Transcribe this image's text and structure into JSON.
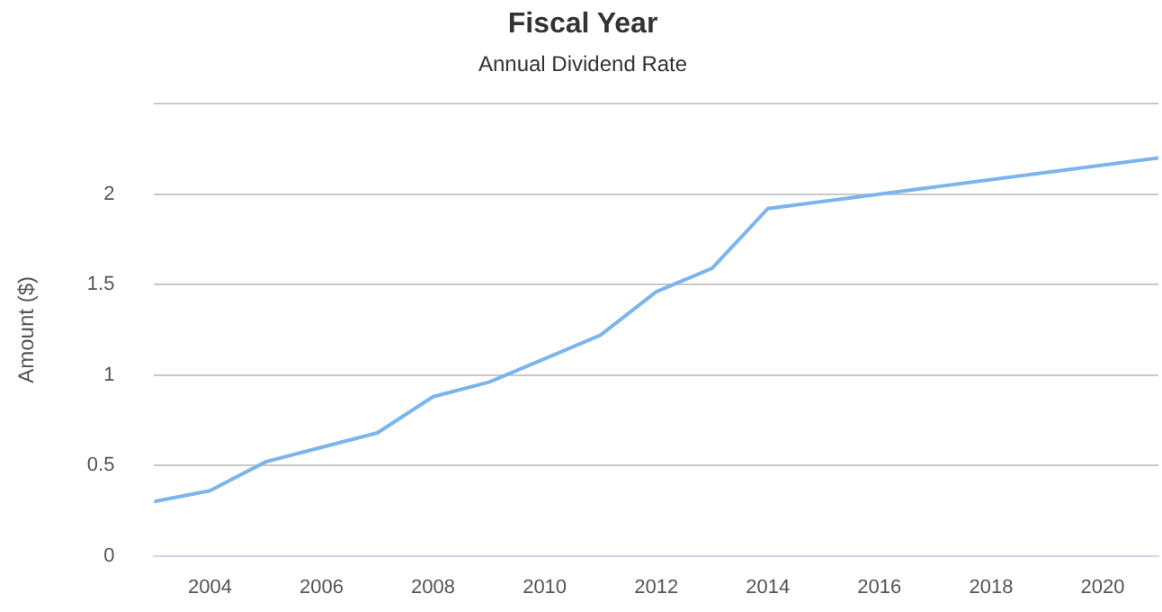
{
  "chart_data": {
    "type": "line",
    "title": "Fiscal Year",
    "subtitle": "Annual Dividend Rate",
    "ylabel": "Amount ($)",
    "x": [
      2003,
      2004,
      2005,
      2006,
      2007,
      2008,
      2009,
      2010,
      2011,
      2012,
      2013,
      2014,
      2021
    ],
    "series": [
      {
        "color": "#7cb5ec",
        "values": [
          0.3,
          0.36,
          0.52,
          0.6,
          0.68,
          0.88,
          0.96,
          1.09,
          1.22,
          1.46,
          1.59,
          1.92,
          2.2
        ]
      }
    ],
    "xlim": [
      2003,
      2021
    ],
    "xticks": [
      2004,
      2006,
      2008,
      2010,
      2012,
      2014,
      2016,
      2018,
      2020
    ],
    "ylim": [
      0,
      2.5
    ],
    "yticks": [
      0,
      0.5,
      1,
      1.5,
      2,
      {
        "value": 2.5,
        "label": null
      }
    ],
    "grid": "y",
    "legend": false,
    "marker": "none",
    "line_style": "solid"
  }
}
